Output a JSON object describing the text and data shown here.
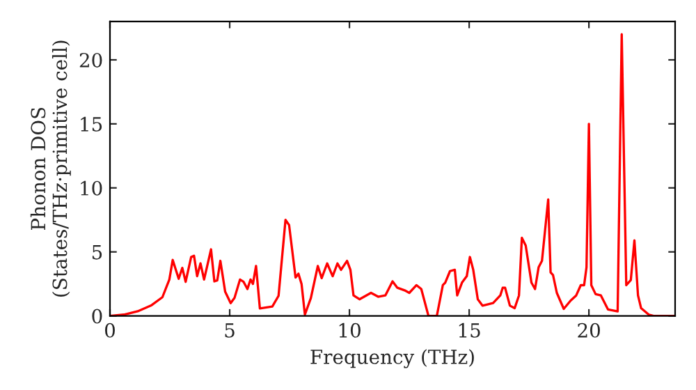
{
  "chart_data": {
    "type": "line",
    "xlabel": "Frequency (THz)",
    "ylabel": "Phonon DOS\n(States/THz·primitive cell)",
    "x": [
      0,
      0.58,
      1.16,
      1.74,
      2.19,
      2.48,
      2.62,
      2.87,
      3.02,
      3.16,
      3.39,
      3.51,
      3.64,
      3.78,
      3.93,
      4.22,
      4.36,
      4.48,
      4.61,
      4.81,
      5.04,
      5.2,
      5.43,
      5.58,
      5.74,
      5.87,
      5.97,
      6.1,
      6.26,
      6.78,
      7.04,
      7.33,
      7.48,
      7.75,
      7.87,
      8.0,
      8.14,
      8.39,
      8.68,
      8.84,
      9.07,
      9.3,
      9.5,
      9.65,
      9.9,
      10.04,
      10.17,
      10.42,
      10.9,
      11.2,
      11.5,
      11.8,
      12.0,
      12.3,
      12.5,
      12.8,
      13.0,
      13.3,
      13.65,
      13.9,
      14.0,
      14.2,
      14.4,
      14.5,
      14.7,
      14.9,
      15.03,
      15.17,
      15.36,
      15.56,
      16.0,
      16.3,
      16.4,
      16.5,
      16.7,
      16.9,
      17.08,
      17.2,
      17.36,
      17.6,
      17.75,
      17.9,
      18.04,
      18.3,
      18.4,
      18.5,
      18.66,
      18.95,
      19.24,
      19.47,
      19.66,
      19.8,
      19.9,
      20.0,
      20.1,
      20.28,
      20.5,
      20.8,
      21.2,
      21.37,
      21.56,
      21.75,
      21.9,
      22.05,
      22.18,
      22.5,
      22.7,
      23.6
    ],
    "series": [
      {
        "color": "#ff0000",
        "values": [
          0,
          0.1,
          0.36,
          0.84,
          1.46,
          2.84,
          4.37,
          2.9,
          3.75,
          2.66,
          4.6,
          4.7,
          3.1,
          4.1,
          2.84,
          5.2,
          2.7,
          2.77,
          4.3,
          1.9,
          1.0,
          1.4,
          2.84,
          2.66,
          2.1,
          2.84,
          2.5,
          3.9,
          0.58,
          0.73,
          1.57,
          7.5,
          7.1,
          3.0,
          3.3,
          2.5,
          0.1,
          1.4,
          3.9,
          2.95,
          4.1,
          3.1,
          4.1,
          3.6,
          4.3,
          3.6,
          1.6,
          1.3,
          1.8,
          1.5,
          1.6,
          2.7,
          2.2,
          2.0,
          1.8,
          2.4,
          2.1,
          0,
          0,
          2.4,
          2.6,
          3.5,
          3.6,
          1.6,
          2.6,
          3.1,
          4.6,
          3.6,
          1.3,
          0.8,
          1.0,
          1.6,
          2.2,
          2.2,
          0.8,
          0.6,
          1.6,
          6.1,
          5.5,
          2.6,
          2.1,
          3.8,
          4.3,
          9.1,
          3.4,
          3.2,
          1.8,
          0.55,
          1.2,
          1.6,
          2.4,
          2.4,
          3.8,
          15.0,
          2.4,
          1.7,
          1.6,
          0.5,
          0.35,
          22.0,
          2.4,
          2.8,
          5.9,
          1.6,
          0.6,
          0.1,
          0,
          0
        ]
      }
    ],
    "xlim": [
      0,
      23.6
    ],
    "ylim": [
      0,
      23
    ],
    "xticks": [
      0,
      5,
      10,
      15,
      20
    ],
    "yticks": [
      0,
      5,
      10,
      15,
      20
    ],
    "grid": false,
    "legend": false
  }
}
